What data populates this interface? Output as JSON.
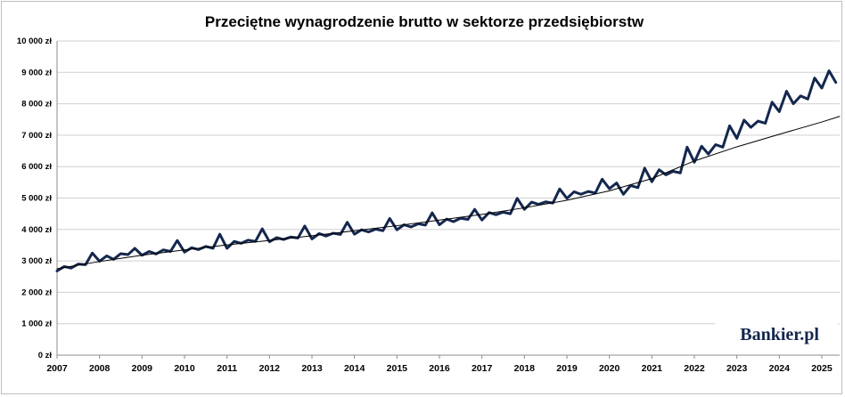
{
  "chart_data": {
    "type": "line",
    "title": "Przeciętne wynagrodzenie brutto w sektorze przedsiębiorstw",
    "xlabel": "",
    "ylabel": "",
    "x_range": [
      2007,
      2025.42
    ],
    "ylim": [
      0,
      10000
    ],
    "y_ticks": [
      0,
      1000,
      2000,
      3000,
      4000,
      5000,
      6000,
      7000,
      8000,
      9000,
      10000
    ],
    "y_tick_labels": [
      "0 zł",
      "1 000 zł",
      "2 000 zł",
      "3 000 zł",
      "4 000 zł",
      "5 000 zł",
      "6 000 zł",
      "7 000 zł",
      "8 000 zł",
      "9 000 zł",
      "10 000 zł"
    ],
    "x_ticks": [
      2007,
      2008,
      2009,
      2010,
      2011,
      2012,
      2013,
      2014,
      2015,
      2016,
      2017,
      2018,
      2019,
      2020,
      2021,
      2022,
      2023,
      2024,
      2025
    ],
    "x_tick_labels": [
      "2007",
      "2008",
      "2009",
      "2010",
      "2011",
      "2012",
      "2013",
      "2014",
      "2015",
      "2016",
      "2017",
      "2018",
      "2019",
      "2020",
      "2021",
      "2022",
      "2023",
      "2024",
      "2025"
    ],
    "grid": true,
    "legend": "none",
    "series": [
      {
        "color": "#14274e",
        "x": [
          2007.0,
          2007.17,
          2007.33,
          2007.5,
          2007.67,
          2007.83,
          2008.0,
          2008.17,
          2008.33,
          2008.5,
          2008.67,
          2008.83,
          2009.0,
          2009.17,
          2009.33,
          2009.5,
          2009.67,
          2009.83,
          2010.0,
          2010.17,
          2010.33,
          2010.5,
          2010.67,
          2010.83,
          2011.0,
          2011.17,
          2011.33,
          2011.5,
          2011.67,
          2011.83,
          2012.0,
          2012.17,
          2012.33,
          2012.5,
          2012.67,
          2012.83,
          2013.0,
          2013.17,
          2013.33,
          2013.5,
          2013.67,
          2013.83,
          2014.0,
          2014.17,
          2014.33,
          2014.5,
          2014.67,
          2014.83,
          2015.0,
          2015.17,
          2015.33,
          2015.5,
          2015.67,
          2015.83,
          2016.0,
          2016.17,
          2016.33,
          2016.5,
          2016.67,
          2016.83,
          2017.0,
          2017.17,
          2017.33,
          2017.5,
          2017.67,
          2017.83,
          2018.0,
          2018.17,
          2018.33,
          2018.5,
          2018.67,
          2018.83,
          2019.0,
          2019.17,
          2019.33,
          2019.5,
          2019.67,
          2019.83,
          2020.0,
          2020.17,
          2020.33,
          2020.5,
          2020.67,
          2020.83,
          2021.0,
          2021.17,
          2021.33,
          2021.5,
          2021.67,
          2021.83,
          2022.0,
          2022.17,
          2022.33,
          2022.5,
          2022.67,
          2022.83,
          2023.0,
          2023.17,
          2023.33,
          2023.5,
          2023.67,
          2023.83,
          2024.0,
          2024.17,
          2024.33,
          2024.5,
          2024.67,
          2024.83,
          2025.0,
          2025.17,
          2025.33
        ],
        "values": [
          2680,
          2820,
          2770,
          2900,
          2880,
          3250,
          2990,
          3160,
          3050,
          3230,
          3200,
          3400,
          3180,
          3300,
          3220,
          3350,
          3300,
          3650,
          3280,
          3420,
          3360,
          3460,
          3400,
          3850,
          3400,
          3620,
          3560,
          3660,
          3620,
          4020,
          3610,
          3740,
          3680,
          3760,
          3730,
          4110,
          3700,
          3870,
          3790,
          3880,
          3840,
          4230,
          3850,
          3990,
          3920,
          4010,
          3960,
          4350,
          3990,
          4150,
          4080,
          4180,
          4140,
          4530,
          4150,
          4330,
          4250,
          4360,
          4320,
          4640,
          4300,
          4540,
          4470,
          4550,
          4500,
          4990,
          4640,
          4870,
          4800,
          4880,
          4840,
          5290,
          4990,
          5200,
          5120,
          5210,
          5160,
          5600,
          5300,
          5480,
          5120,
          5400,
          5330,
          5950,
          5520,
          5900,
          5740,
          5850,
          5800,
          6620,
          6140,
          6650,
          6400,
          6700,
          6620,
          7300,
          6900,
          7480,
          7250,
          7450,
          7380,
          8050,
          7750,
          8400,
          8000,
          8250,
          8150,
          8820,
          8500,
          9050,
          8680
        ]
      },
      {
        "color": "#000000",
        "x": [
          2007.0,
          2008.0,
          2009.0,
          2010.0,
          2011.0,
          2012.0,
          2013.0,
          2014.0,
          2015.0,
          2016.0,
          2017.0,
          2018.0,
          2019.0,
          2020.0,
          2021.0,
          2022.0,
          2023.0,
          2024.0,
          2025.0,
          2025.42
        ],
        "values": [
          2750,
          2980,
          3180,
          3350,
          3510,
          3650,
          3800,
          3960,
          4120,
          4300,
          4480,
          4690,
          4930,
          5230,
          5620,
          6180,
          6630,
          7030,
          7420,
          7600
        ]
      }
    ]
  },
  "logo": {
    "text": "Bankier.pl"
  }
}
